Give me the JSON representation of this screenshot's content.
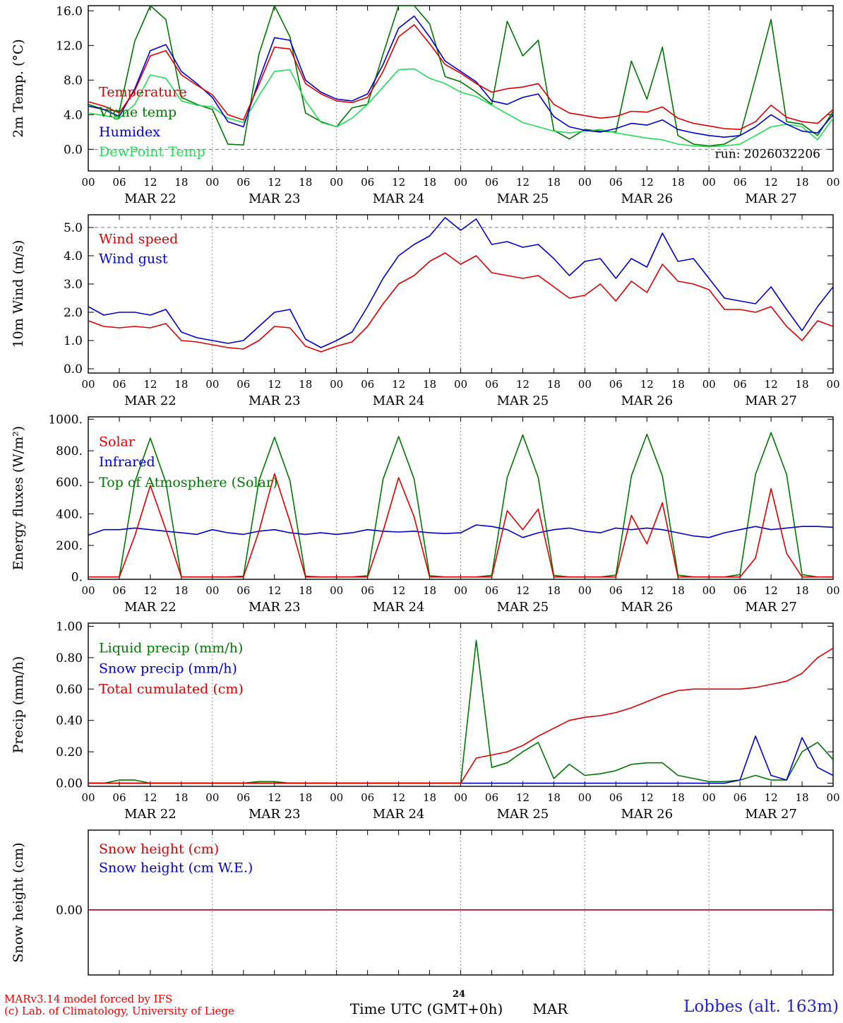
{
  "footer": {
    "credit_line1": "MARv3.14 model forced by IFS",
    "credit_line2": "(c) Lab. of Climatology, University of Liege",
    "xaxis_title": "Time UTC (GMT+0h)",
    "xaxis_month": "MAR",
    "xaxis_day_super": "24",
    "station": "Lobbes (alt. 163m)"
  },
  "chart_data": {
    "type": "line",
    "x_step_hours": 3,
    "x_axis": {
      "range": [
        0,
        144
      ],
      "tick_interval_hours": 6,
      "tick_labels_cycle": [
        "00",
        "06",
        "12",
        "18"
      ],
      "day_labels": [
        "MAR 22",
        "MAR 23",
        "MAR 24",
        "MAR 25",
        "MAR 26",
        "MAR 27"
      ]
    },
    "panels": [
      {
        "id": "temperature",
        "ylabel": "2m Temp. (°C)",
        "ylim": [
          -2.5,
          16.6
        ],
        "yticks": [
          {
            "v": 0,
            "label": "0.0"
          },
          {
            "v": 4,
            "label": "4.0"
          },
          {
            "v": 8,
            "label": "8.0"
          },
          {
            "v": 12,
            "label": "12.0"
          },
          {
            "v": 16,
            "label": "16.0"
          }
        ],
        "dashed_hline": 0,
        "annotation": "run: 2026032206",
        "legend": [
          {
            "label": "Temperature",
            "color": "#dd0000"
          },
          {
            "label": "Vigne temp",
            "color": "#007700"
          },
          {
            "label": "Humidex",
            "color": "#0000cc"
          },
          {
            "label": "DewPoint Temp",
            "color": "#22dd55"
          }
        ],
        "series": [
          {
            "key": "vigne-temp",
            "label": "Vigne temp",
            "color": "#007700",
            "values": [
              5.2,
              4.6,
              4.4,
              12.5,
              16.6,
              15.0,
              6.0,
              5.2,
              4.6,
              0.6,
              0.5,
              11.0,
              16.6,
              13.0,
              4.2,
              3.2,
              2.6,
              4.8,
              5.2,
              11.0,
              16.6,
              16.6,
              14.5,
              8.4,
              7.8,
              6.6,
              5.2,
              14.8,
              10.8,
              12.6,
              2.2,
              1.2,
              2.3,
              2.1,
              2.0,
              10.2,
              5.8,
              11.8,
              1.6,
              0.6,
              0.4,
              0.6,
              1.6,
              8.2,
              15.0,
              3.2,
              2.9,
              1.6,
              4.4
            ]
          },
          {
            "key": "dewpoint-temp",
            "label": "DewPoint Temp",
            "color": "#22dd55",
            "values": [
              4.2,
              3.9,
              3.6,
              5.2,
              8.6,
              8.2,
              5.6,
              5.1,
              4.9,
              3.6,
              3.1,
              6.2,
              9.0,
              9.2,
              5.6,
              3.1,
              2.6,
              3.6,
              5.2,
              7.2,
              9.2,
              9.3,
              8.2,
              7.6,
              6.6,
              6.1,
              5.1,
              4.1,
              3.1,
              2.6,
              2.1,
              1.9,
              2.1,
              2.3,
              1.9,
              1.6,
              1.3,
              1.1,
              0.6,
              0.4,
              0.3,
              0.4,
              0.6,
              1.6,
              2.6,
              2.9,
              2.6,
              1.1,
              3.6
            ]
          },
          {
            "key": "humidex",
            "label": "Humidex",
            "color": "#0000cc",
            "values": [
              5.0,
              4.6,
              3.8,
              7.0,
              11.4,
              12.1,
              9.0,
              7.6,
              6.0,
              3.2,
              2.6,
              8.0,
              12.9,
              12.6,
              8.0,
              6.6,
              5.8,
              5.6,
              6.4,
              9.8,
              14.0,
              15.4,
              13.0,
              10.2,
              9.0,
              7.8,
              5.6,
              5.2,
              6.0,
              6.4,
              3.8,
              2.6,
              2.2,
              2.0,
              2.4,
              3.0,
              2.8,
              3.4,
              2.3,
              1.9,
              1.6,
              1.4,
              1.6,
              2.6,
              4.0,
              2.9,
              2.1,
              1.9,
              4.0
            ]
          },
          {
            "key": "temperature",
            "label": "Temperature",
            "color": "#dd0000",
            "values": [
              5.5,
              5.0,
              4.2,
              6.8,
              10.8,
              11.4,
              8.6,
              7.4,
              6.3,
              4.0,
              3.4,
              7.5,
              11.8,
              11.6,
              7.6,
              6.4,
              5.6,
              5.4,
              6.0,
              9.0,
              13.0,
              14.4,
              12.2,
              9.8,
              8.8,
              7.6,
              6.6,
              7.0,
              7.2,
              7.6,
              5.2,
              4.2,
              3.9,
              3.6,
              3.8,
              4.4,
              4.3,
              4.9,
              3.6,
              3.0,
              2.7,
              2.4,
              2.3,
              3.2,
              5.1,
              3.7,
              3.2,
              3.0,
              4.6
            ]
          }
        ]
      },
      {
        "id": "wind",
        "ylabel": "10m Wind (m/s)",
        "ylim": [
          -0.15,
          5.45
        ],
        "yticks": [
          {
            "v": 0,
            "label": "0.0"
          },
          {
            "v": 1,
            "label": "1.0"
          },
          {
            "v": 2,
            "label": "2.0"
          },
          {
            "v": 3,
            "label": "3.0"
          },
          {
            "v": 4,
            "label": "4.0"
          },
          {
            "v": 5,
            "label": "5.0"
          }
        ],
        "dashed_hline": 5,
        "legend": [
          {
            "label": "Wind speed",
            "color": "#dd0000"
          },
          {
            "label": "Wind gust",
            "color": "#0000cc"
          }
        ],
        "series": [
          {
            "key": "wind-gust",
            "label": "Wind gust",
            "color": "#0000cc",
            "values": [
              2.2,
              1.9,
              2.0,
              2.0,
              1.9,
              2.1,
              1.3,
              1.1,
              1.0,
              0.9,
              1.0,
              1.5,
              2.0,
              2.1,
              1.05,
              0.75,
              1.0,
              1.3,
              2.2,
              3.2,
              4.0,
              4.4,
              4.7,
              5.35,
              4.9,
              5.3,
              4.4,
              4.5,
              4.3,
              4.4,
              3.9,
              3.3,
              3.8,
              3.9,
              3.2,
              3.9,
              3.6,
              4.8,
              3.8,
              3.9,
              3.2,
              2.5,
              2.4,
              2.3,
              2.9,
              2.1,
              1.35,
              2.2,
              2.9
            ]
          },
          {
            "key": "wind-speed",
            "label": "Wind speed",
            "color": "#dd0000",
            "values": [
              1.7,
              1.5,
              1.45,
              1.5,
              1.45,
              1.6,
              1.0,
              0.95,
              0.85,
              0.75,
              0.7,
              1.0,
              1.5,
              1.45,
              0.8,
              0.6,
              0.8,
              0.95,
              1.5,
              2.3,
              3.0,
              3.3,
              3.8,
              4.1,
              3.7,
              4.0,
              3.4,
              3.3,
              3.2,
              3.3,
              2.9,
              2.5,
              2.6,
              3.0,
              2.4,
              3.1,
              2.7,
              3.7,
              3.1,
              3.0,
              2.8,
              2.1,
              2.1,
              2.0,
              2.2,
              1.5,
              1.0,
              1.7,
              1.5
            ]
          }
        ]
      },
      {
        "id": "energy-flux",
        "ylabel": "Energy fluxes (W/m²)",
        "ylim": [
          -15,
          1015
        ],
        "yticks": [
          {
            "v": 0,
            "label": "0."
          },
          {
            "v": 200,
            "label": "200."
          },
          {
            "v": 400,
            "label": "400."
          },
          {
            "v": 600,
            "label": "600."
          },
          {
            "v": 800,
            "label": "800."
          },
          {
            "v": 1000,
            "label": "1000."
          }
        ],
        "legend": [
          {
            "label": "Solar",
            "color": "#dd0000"
          },
          {
            "label": "Infrared",
            "color": "#0000cc"
          },
          {
            "label": "Top of Atmosphere (Solar)",
            "color": "#007700"
          }
        ],
        "series": [
          {
            "key": "toa-solar",
            "label": "Top of Atmosphere (Solar)",
            "color": "#007700",
            "values": [
              0,
              0,
              0,
              600,
              880,
              600,
              0,
              0,
              0,
              0,
              5,
              610,
              885,
              610,
              5,
              0,
              0,
              0,
              8,
              620,
              890,
              620,
              8,
              0,
              0,
              0,
              10,
              630,
              900,
              630,
              10,
              0,
              0,
              0,
              12,
              640,
              905,
              640,
              12,
              0,
              0,
              0,
              15,
              650,
              915,
              650,
              15,
              0,
              0
            ]
          },
          {
            "key": "infrared",
            "label": "Infrared",
            "color": "#0000cc",
            "values": [
              265,
              300,
              300,
              310,
              300,
              290,
              280,
              270,
              300,
              280,
              270,
              290,
              300,
              280,
              270,
              280,
              270,
              280,
              300,
              290,
              285,
              290,
              280,
              275,
              280,
              330,
              320,
              300,
              250,
              280,
              300,
              310,
              290,
              280,
              310,
              300,
              310,
              300,
              280,
              260,
              250,
              280,
              300,
              320,
              300,
              310,
              320,
              320,
              315
            ]
          },
          {
            "key": "solar",
            "label": "Solar",
            "color": "#dd0000",
            "values": [
              0,
              0,
              0,
              260,
              580,
              300,
              0,
              0,
              0,
              0,
              0,
              290,
              655,
              350,
              0,
              0,
              0,
              0,
              0,
              290,
              630,
              380,
              0,
              0,
              0,
              0,
              0,
              420,
              300,
              430,
              0,
              0,
              0,
              0,
              0,
              390,
              210,
              470,
              0,
              0,
              0,
              0,
              0,
              120,
              560,
              150,
              0,
              0,
              0
            ]
          }
        ]
      },
      {
        "id": "precip",
        "ylabel": "Precip (mm/h)",
        "ylim": [
          -0.02,
          1.02
        ],
        "yticks": [
          {
            "v": 0,
            "label": "0.00"
          },
          {
            "v": 0.2,
            "label": "0.20"
          },
          {
            "v": 0.4,
            "label": "0.40"
          },
          {
            "v": 0.6,
            "label": "0.60"
          },
          {
            "v": 0.8,
            "label": "0.80"
          },
          {
            "v": 1.0,
            "label": "1.00"
          }
        ],
        "legend": [
          {
            "label": "Liquid precip (mm/h)",
            "color": "#007700"
          },
          {
            "label": "Snow precip (mm/h)",
            "color": "#0000cc"
          },
          {
            "label": "Total cumulated (cm)",
            "color": "#dd0000"
          }
        ],
        "series": [
          {
            "key": "liquid-precip",
            "label": "Liquid precip (mm/h)",
            "color": "#007700",
            "values": [
              0,
              0,
              0.02,
              0.02,
              0,
              0,
              0,
              0,
              0,
              0,
              0,
              0.01,
              0.01,
              0,
              0,
              0,
              0,
              0,
              0,
              0,
              0,
              0,
              0,
              0,
              0,
              0.91,
              0.1,
              0.13,
              0.2,
              0.26,
              0.03,
              0.12,
              0.05,
              0.06,
              0.08,
              0.12,
              0.13,
              0.13,
              0.05,
              0.03,
              0.01,
              0.01,
              0.02,
              0.05,
              0.02,
              0.02,
              0.2,
              0.26,
              0.15
            ]
          },
          {
            "key": "snow-precip",
            "label": "Snow precip (mm/h)",
            "color": "#0000cc",
            "values": [
              0,
              0,
              0,
              0,
              0,
              0,
              0,
              0,
              0,
              0,
              0,
              0,
              0,
              0,
              0,
              0,
              0,
              0,
              0,
              0,
              0,
              0,
              0,
              0,
              0,
              0,
              0,
              0,
              0,
              0,
              0,
              0,
              0,
              0,
              0,
              0,
              0,
              0,
              0,
              0,
              0,
              0,
              0.02,
              0.3,
              0.05,
              0.02,
              0.29,
              0.1,
              0.05
            ]
          },
          {
            "key": "total-cumulated",
            "label": "Total cumulated (cm)",
            "color": "#dd0000",
            "values": [
              0,
              0,
              0,
              0,
              0,
              0,
              0,
              0,
              0,
              0,
              0,
              0,
              0,
              0,
              0,
              0,
              0,
              0,
              0,
              0,
              0,
              0,
              0,
              0,
              0,
              0.16,
              0.18,
              0.2,
              0.24,
              0.3,
              0.35,
              0.4,
              0.42,
              0.43,
              0.45,
              0.48,
              0.52,
              0.56,
              0.59,
              0.6,
              0.6,
              0.6,
              0.6,
              0.61,
              0.63,
              0.65,
              0.7,
              0.8,
              0.86
            ]
          }
        ]
      },
      {
        "id": "snow-height",
        "ylabel": "Snow height (cm)",
        "ylim": [
          -0.9,
          1.1
        ],
        "yticks": [
          {
            "v": 0,
            "label": "0.00"
          }
        ],
        "legend": [
          {
            "label": "Snow height (cm)",
            "color": "#dd0000"
          },
          {
            "label": "Snow height (cm W.E.)",
            "color": "#0000cc"
          }
        ],
        "series": [
          {
            "key": "snow-height-we",
            "label": "Snow height (cm W.E.)",
            "color": "#0000cc",
            "constant": 0
          },
          {
            "key": "snow-height",
            "label": "Snow height (cm)",
            "color": "#dd0000",
            "constant": 0
          }
        ]
      }
    ]
  }
}
